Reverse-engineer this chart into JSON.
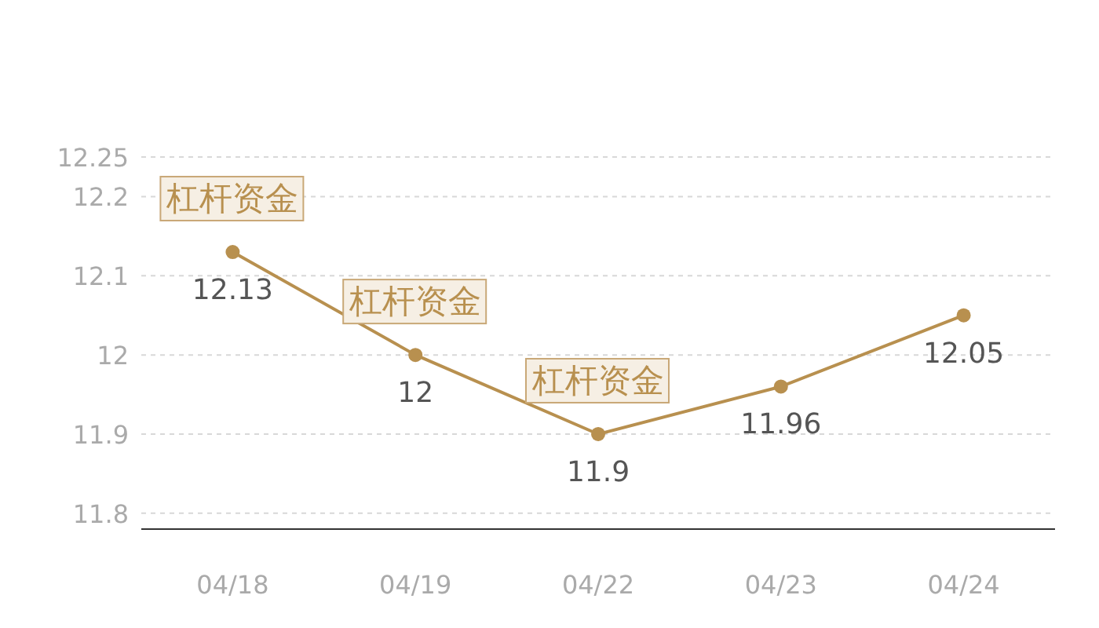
{
  "chart_data": {
    "type": "line",
    "categories": [
      "04/18",
      "04/19",
      "04/22",
      "04/23",
      "04/24"
    ],
    "series": [
      {
        "color": "#b8904f",
        "values": [
          12.13,
          12,
          11.9,
          11.96,
          12.05
        ]
      }
    ],
    "ylim": [
      11.78,
      12.25
    ],
    "yticks": [
      11.8,
      11.9,
      12,
      12.1,
      12.2,
      12.25
    ],
    "grid": "y",
    "marker": "circle",
    "data_labels": true,
    "annotations": [
      {
        "text": "杠杆资金",
        "x": "04/18",
        "y": 12.13
      },
      {
        "text": "杠杆资金",
        "x": "04/19",
        "y": 12
      },
      {
        "text": "杠杆资金",
        "x": "04/22",
        "y": 11.9
      }
    ]
  }
}
